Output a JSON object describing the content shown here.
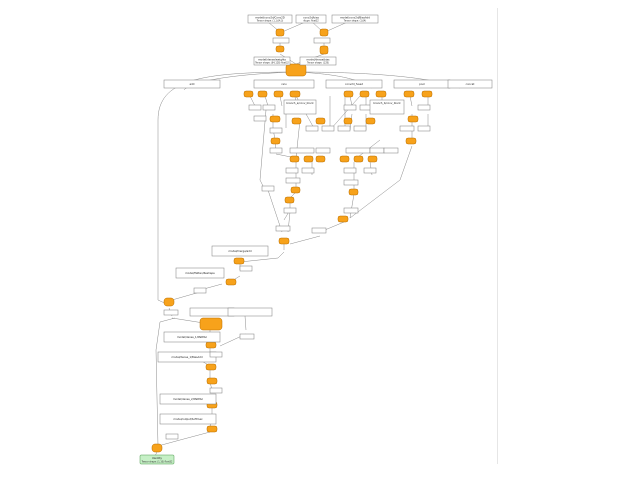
{
  "graph": {
    "top_inputs": [
      {
        "title": "model/conv2d/Conv2D",
        "sub": "Tensor shape: (1,1,64,3)"
      },
      {
        "title": "conv2d/bias",
        "sub": "dtype: float32"
      },
      {
        "title": "model/conv2d/BiasAdd",
        "sub": "Tensor shape: (1,64)"
      }
    ],
    "block_titles": [
      "add",
      "relu",
      "conv2d_fused",
      "pool",
      "concat"
    ],
    "params_left": {
      "title": "model/dense/weights",
      "sub": "Tensor shape: (64,128) float32"
    },
    "params_right": {
      "title": "model/dense/bias",
      "sub": "Tensor shape: (128)"
    },
    "op_labels": [
      "MatMul",
      "BiasAdd",
      "Relu",
      "Add",
      "Mul",
      "Conv2D",
      "Reshape",
      "Concat",
      "Split",
      "Sum"
    ],
    "branch_left_title": "branch_a/conv_block",
    "branch_right_title": "branch_b/conv_block",
    "merge_title": "model/merge/add",
    "lower_titles": [
      "model/flatten/Reshape",
      "model/dense_1/MatMul",
      "model/dense_1/BiasAdd",
      "model/dense_2/MatMul",
      "model/output/Softmax"
    ],
    "output_title": "Identity",
    "output_sub": "Tensor shape: (1,10) float32"
  }
}
